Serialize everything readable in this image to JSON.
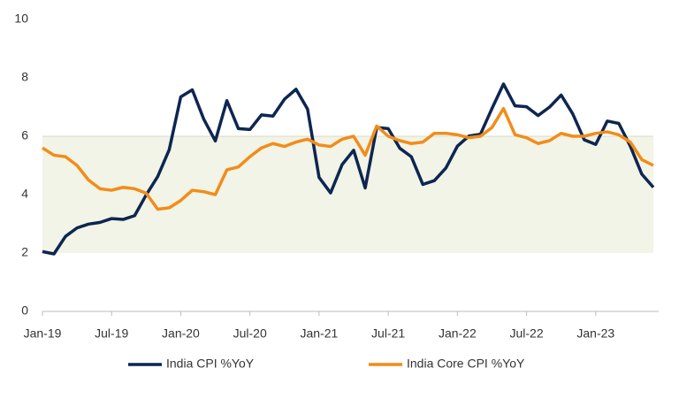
{
  "chart_data": {
    "type": "line",
    "categories": [
      "Jan-19",
      null,
      null,
      null,
      null,
      null,
      "Jul-19",
      null,
      null,
      null,
      null,
      null,
      "Jan-20",
      null,
      null,
      null,
      null,
      null,
      "Jul-20",
      null,
      null,
      null,
      null,
      null,
      "Jan-21",
      null,
      null,
      null,
      null,
      null,
      "Jul-21",
      null,
      null,
      null,
      null,
      null,
      "Jan-22",
      null,
      null,
      null,
      null,
      null,
      "Jul-22",
      null,
      null,
      null,
      null,
      null,
      "Jan-23",
      null,
      null,
      null,
      null,
      null
    ],
    "series": [
      {
        "name": "India CPI %YoY",
        "color": "#0d2651",
        "values": [
          2.05,
          1.97,
          2.57,
          2.86,
          2.99,
          3.05,
          3.18,
          3.15,
          3.28,
          3.99,
          4.62,
          5.54,
          7.35,
          7.59,
          6.58,
          5.84,
          7.22,
          6.26,
          6.23,
          6.73,
          6.69,
          7.27,
          7.61,
          6.93,
          4.59,
          4.06,
          5.03,
          5.52,
          4.23,
          6.3,
          6.26,
          5.59,
          5.3,
          4.35,
          4.48,
          4.91,
          5.66,
          6.01,
          6.07,
          6.95,
          7.79,
          7.04,
          7.01,
          6.71,
          7.0,
          7.41,
          6.77,
          5.88,
          5.72,
          6.52,
          6.44,
          5.66,
          4.7,
          4.25
        ]
      },
      {
        "name": "India Core CPI %YoY",
        "color": "#f28c1a",
        "values": [
          5.6,
          5.35,
          5.3,
          5.0,
          4.5,
          4.2,
          4.15,
          4.25,
          4.2,
          4.05,
          3.5,
          3.55,
          3.8,
          4.15,
          4.1,
          4.0,
          4.85,
          4.95,
          5.3,
          5.6,
          5.75,
          5.65,
          5.8,
          5.9,
          5.7,
          5.65,
          5.9,
          6.0,
          5.35,
          6.35,
          6.0,
          5.85,
          5.75,
          5.8,
          6.1,
          6.1,
          6.05,
          5.95,
          6.0,
          6.3,
          6.95,
          6.05,
          5.95,
          5.75,
          5.85,
          6.1,
          6.0,
          6.0,
          6.1,
          6.15,
          6.05,
          5.8,
          5.2,
          5.0
        ]
      }
    ],
    "ylim": [
      0,
      10
    ],
    "yticks": [
      0,
      2,
      4,
      6,
      8,
      10
    ],
    "target_band": [
      2,
      6
    ],
    "band_color": "#f1f4e6",
    "grid": false,
    "legend": "bottom"
  }
}
